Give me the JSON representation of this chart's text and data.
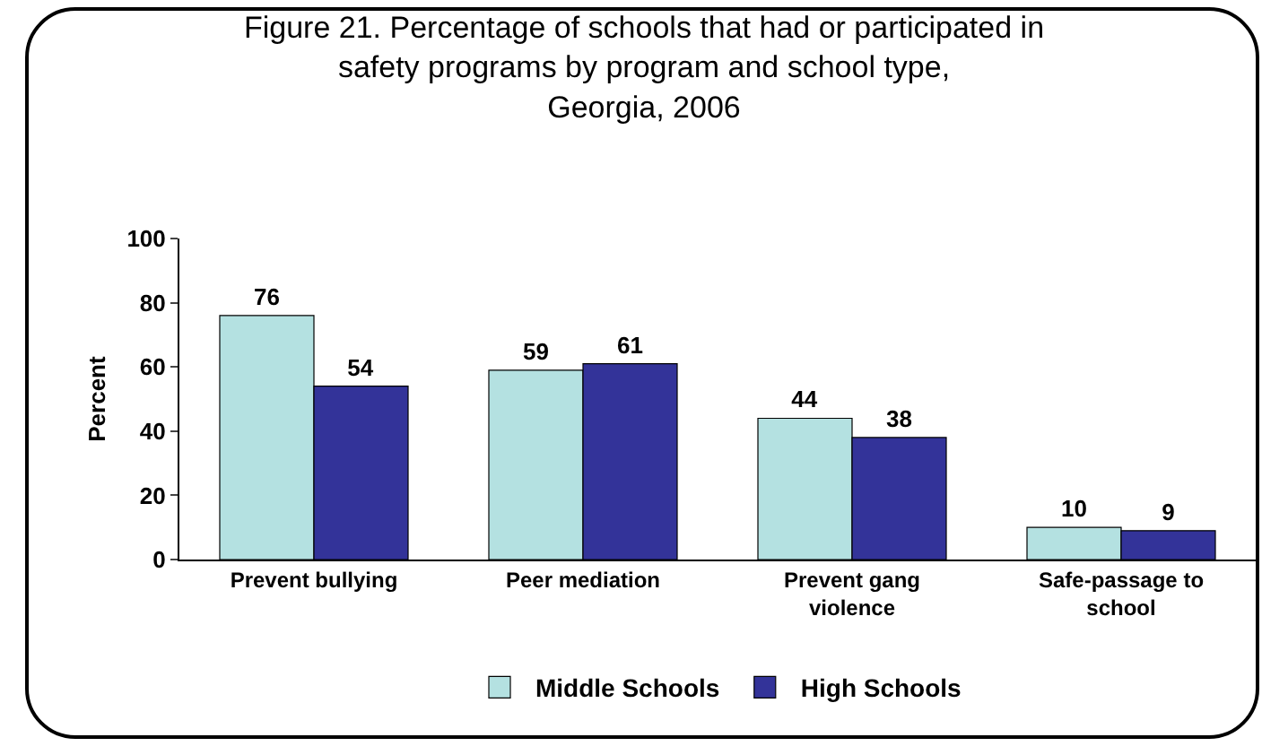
{
  "chart_data": {
    "type": "bar",
    "title": "Figure 21. Percentage of schools that had or participated in\nsafety programs by program and school type,\nGeorgia, 2006",
    "ylabel": "Percent",
    "categories": [
      "Prevent bullying",
      "Peer mediation",
      "Prevent gang violence",
      "Safe-passage to school"
    ],
    "series": [
      {
        "name": "Middle Schools",
        "color": "#b4e1e1",
        "values": [
          76,
          59,
          44,
          10
        ]
      },
      {
        "name": "High Schools",
        "color": "#333399",
        "values": [
          54,
          61,
          38,
          9
        ]
      }
    ],
    "ylim": [
      0,
      100
    ],
    "yticks": [
      0,
      20,
      40,
      60,
      80,
      100
    ],
    "grid": false,
    "legend": "bottom",
    "data_labels": true
  }
}
